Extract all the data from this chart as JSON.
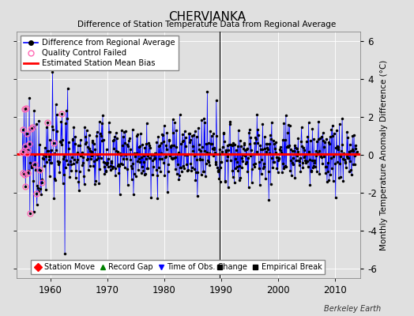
{
  "title": "CHERVJANKA",
  "subtitle": "Difference of Station Temperature Data from Regional Average",
  "ylabel": "Monthly Temperature Anomaly Difference (°C)",
  "ylim": [
    -6.5,
    6.5
  ],
  "yticks": [
    -6,
    -4,
    -2,
    0,
    2,
    4,
    6
  ],
  "xlim": [
    1954.0,
    2014.5
  ],
  "xticks": [
    1960,
    1970,
    1980,
    1990,
    2000,
    2010
  ],
  "start_year": 1955,
  "end_year": 2013,
  "bias_level": 0.05,
  "bias_start": 1954.0,
  "bias_end": 2014.5,
  "time_of_obs_change_x": 1989.75,
  "empirical_break_x": 1989.75,
  "empirical_break_y": -5.9,
  "background_color": "#e0e0e0",
  "line_color": "#0000ff",
  "dot_color": "#000000",
  "bias_color": "#ff0000",
  "qc_color": "#ff69b4",
  "watermark": "Berkeley Earth",
  "seed_main": 12345,
  "seed_qc": 999
}
